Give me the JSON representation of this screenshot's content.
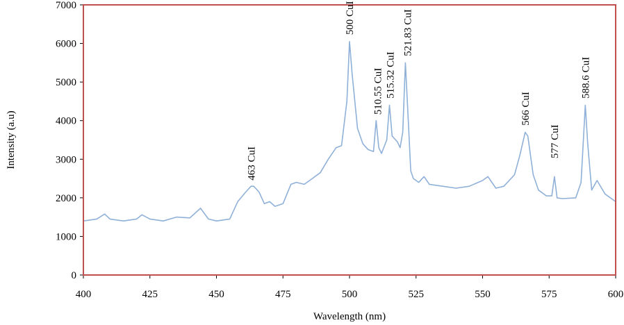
{
  "chart_data": {
    "type": "line",
    "title": "",
    "xlabel": "Wavelength (nm)",
    "ylabel": "Intensity (a.u)",
    "xlim": [
      400,
      600
    ],
    "ylim": [
      0,
      7000
    ],
    "xticks": [
      400,
      425,
      450,
      475,
      500,
      525,
      550,
      575,
      600
    ],
    "yticks": [
      0,
      1000,
      2000,
      3000,
      4000,
      5000,
      6000,
      7000
    ],
    "grid": false,
    "legend": "none",
    "colors": {
      "line": "#8fb0d8",
      "frame": "#c0504d",
      "text": "#000000"
    },
    "series": [
      {
        "x": [
          400,
          405,
          408,
          410,
          415,
          420,
          422,
          425,
          430,
          435,
          440,
          444,
          447,
          450,
          455,
          458,
          461,
          463,
          464,
          466,
          468,
          470,
          472,
          475,
          478,
          480,
          483,
          486,
          489,
          492,
          495,
          497,
          499,
          500,
          501,
          503,
          505,
          507,
          509,
          510,
          511,
          512,
          514,
          515,
          516,
          518,
          519,
          520,
          521,
          522,
          523,
          524,
          526,
          528,
          530,
          535,
          540,
          545,
          550,
          552,
          555,
          558,
          562,
          564,
          566,
          567,
          569,
          571,
          574,
          576,
          577,
          578,
          580,
          585,
          587,
          588.6,
          589.5,
          591,
          593,
          596,
          600
        ],
        "y": [
          1400,
          1450,
          1580,
          1450,
          1400,
          1450,
          1560,
          1450,
          1400,
          1500,
          1480,
          1730,
          1450,
          1400,
          1450,
          1900,
          2150,
          2300,
          2300,
          2150,
          1850,
          1900,
          1780,
          1850,
          2350,
          2400,
          2350,
          2500,
          2650,
          3000,
          3300,
          3350,
          4500,
          6050,
          5200,
          3800,
          3400,
          3250,
          3200,
          4000,
          3300,
          3150,
          3500,
          4400,
          3600,
          3450,
          3300,
          3700,
          5500,
          4100,
          2700,
          2500,
          2400,
          2550,
          2350,
          2300,
          2250,
          2300,
          2450,
          2550,
          2250,
          2300,
          2600,
          3100,
          3700,
          3600,
          2600,
          2200,
          2050,
          2050,
          2550,
          2000,
          1980,
          2000,
          2400,
          4400,
          3400,
          2200,
          2450,
          2100,
          1900
        ]
      }
    ],
    "annotations": [
      {
        "text": "463 CuI",
        "x": 463,
        "y": 2380
      },
      {
        "text": "500 CuI",
        "x": 500,
        "y": 6150
      },
      {
        "text": "510.55 CuI",
        "x": 510.55,
        "y": 4080
      },
      {
        "text": "515.32 CuI",
        "x": 515.32,
        "y": 4500
      },
      {
        "text": "521.83 CuI",
        "x": 521.83,
        "y": 5600
      },
      {
        "text": "566 CuI",
        "x": 566,
        "y": 3800
      },
      {
        "text": "577 CuI",
        "x": 577,
        "y": 2950
      },
      {
        "text": "588.6 CuI",
        "x": 588.6,
        "y": 4500
      }
    ]
  }
}
